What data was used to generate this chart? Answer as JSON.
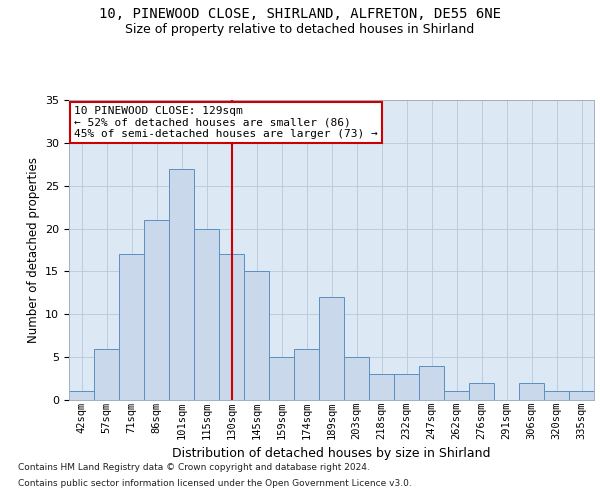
{
  "title1": "10, PINEWOOD CLOSE, SHIRLAND, ALFRETON, DE55 6NE",
  "title2": "Size of property relative to detached houses in Shirland",
  "xlabel": "Distribution of detached houses by size in Shirland",
  "ylabel": "Number of detached properties",
  "categories": [
    "42sqm",
    "57sqm",
    "71sqm",
    "86sqm",
    "101sqm",
    "115sqm",
    "130sqm",
    "145sqm",
    "159sqm",
    "174sqm",
    "189sqm",
    "203sqm",
    "218sqm",
    "232sqm",
    "247sqm",
    "262sqm",
    "276sqm",
    "291sqm",
    "306sqm",
    "320sqm",
    "335sqm"
  ],
  "values": [
    1,
    6,
    17,
    21,
    27,
    20,
    17,
    15,
    5,
    6,
    12,
    5,
    3,
    3,
    4,
    1,
    2,
    0,
    2,
    1,
    1
  ],
  "bar_color": "#c9d9eb",
  "bar_edge_color": "#5a8fc0",
  "vline_color": "#cc0000",
  "annotation_text": "10 PINEWOOD CLOSE: 129sqm\n← 52% of detached houses are smaller (86)\n45% of semi-detached houses are larger (73) →",
  "annotation_box_color": "#ffffff",
  "annotation_box_edge": "#cc0000",
  "footnote1": "Contains HM Land Registry data © Crown copyright and database right 2024.",
  "footnote2": "Contains public sector information licensed under the Open Government Licence v3.0.",
  "ylim": [
    0,
    35
  ],
  "yticks": [
    0,
    5,
    10,
    15,
    20,
    25,
    30,
    35
  ],
  "plot_background": "#dde8f5"
}
